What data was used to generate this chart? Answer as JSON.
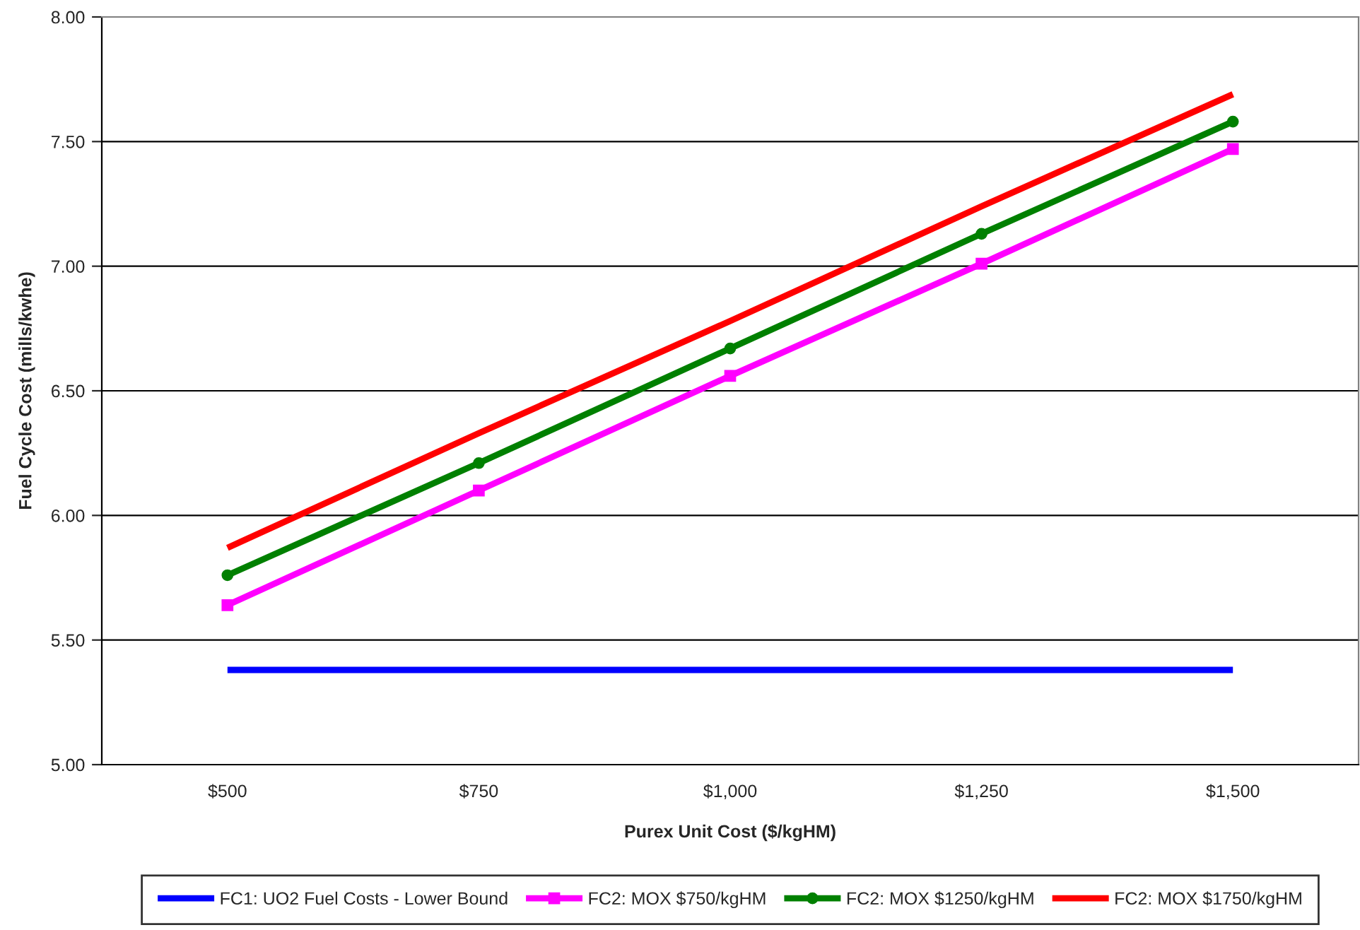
{
  "chart_data": {
    "type": "line",
    "xlabel": "Purex Unit Cost ($/kgHM)",
    "ylabel": "Fuel Cycle Cost (mills/kwhe)",
    "categories": [
      "$500",
      "$750",
      "$1,000",
      "$1,250",
      "$1,500"
    ],
    "ylim": [
      5.0,
      8.0
    ],
    "yticks": [
      {
        "value": 5.0,
        "label": "5.00"
      },
      {
        "value": 5.5,
        "label": "5.50"
      },
      {
        "value": 6.0,
        "label": "6.00"
      },
      {
        "value": 6.5,
        "label": "6.50"
      },
      {
        "value": 7.0,
        "label": "7.00"
      },
      {
        "value": 7.5,
        "label": "7.50"
      },
      {
        "value": 8.0,
        "label": "8.00"
      }
    ],
    "grid": "y",
    "legend": "bottom",
    "series": [
      {
        "name": "FC1: UO2 Fuel Costs - Lower Bound",
        "color": "#0000ff",
        "marker": "none",
        "values": [
          5.38,
          5.38,
          5.38,
          5.38,
          5.38
        ]
      },
      {
        "name": "FC2: MOX $750/kgHM",
        "color": "#ff00ff",
        "marker": "square",
        "values": [
          5.64,
          6.1,
          6.56,
          7.01,
          7.47
        ]
      },
      {
        "name": "FC2: MOX $1250/kgHM",
        "color": "#008000",
        "marker": "circle",
        "values": [
          5.76,
          6.21,
          6.67,
          7.13,
          7.58
        ]
      },
      {
        "name": "FC2: MOX $1750/kgHM",
        "color": "#ff0000",
        "marker": "none",
        "values": [
          5.87,
          6.33,
          6.78,
          7.24,
          7.69
        ]
      }
    ]
  }
}
